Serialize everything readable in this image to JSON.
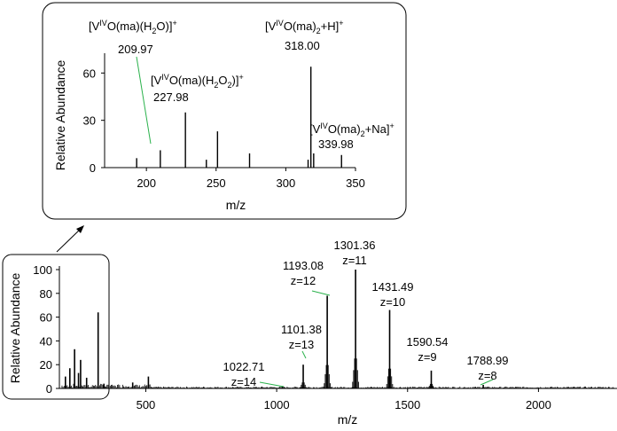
{
  "chart_data": [
    {
      "type": "line",
      "title": "",
      "xlabel": "m/z",
      "ylabel": "Relative Abundance",
      "xlim": [
        170,
        350
      ],
      "ylim": [
        0,
        72
      ],
      "xticks": [
        200,
        250,
        300,
        350
      ],
      "yticks": [
        0,
        30,
        60
      ],
      "grid": false,
      "peaks": [
        {
          "x": 193,
          "y": 6
        },
        {
          "x": 209.97,
          "y": 11
        },
        {
          "x": 227.98,
          "y": 35
        },
        {
          "x": 243,
          "y": 5
        },
        {
          "x": 251,
          "y": 23
        },
        {
          "x": 274,
          "y": 9
        },
        {
          "x": 316,
          "y": 5
        },
        {
          "x": 318.0,
          "y": 64
        },
        {
          "x": 320,
          "y": 9
        },
        {
          "x": 339.98,
          "y": 8
        }
      ],
      "annotations": [
        {
          "formula": "[V^IVO(ma)(H2O)]+",
          "value": "209.97",
          "peak_x": 209.97
        },
        {
          "formula": "[V^IVO(ma)(H2O)2]+",
          "value": "227.98",
          "peak_x": 227.98
        },
        {
          "formula": "[V^IVO(ma)2+H]+",
          "value": "318.00",
          "peak_x": 318.0
        },
        {
          "formula": "[V^IVO(ma)2+Na]+",
          "value": "339.98",
          "peak_x": 339.98
        }
      ]
    },
    {
      "type": "line",
      "title": "",
      "xlabel": "m/z",
      "ylabel": "Relative Abundance",
      "xlim": [
        170,
        2300
      ],
      "ylim": [
        0,
        100
      ],
      "xticks": [
        500,
        1000,
        1500,
        2000
      ],
      "yticks": [
        0,
        20,
        40,
        60,
        80,
        100
      ],
      "grid": false,
      "peaks": [
        {
          "x": 193,
          "y": 10
        },
        {
          "x": 209.97,
          "y": 17
        },
        {
          "x": 227.98,
          "y": 33
        },
        {
          "x": 243,
          "y": 13
        },
        {
          "x": 251,
          "y": 24
        },
        {
          "x": 274,
          "y": 9
        },
        {
          "x": 318.0,
          "y": 64
        },
        {
          "x": 339.98,
          "y": 4
        },
        {
          "x": 450,
          "y": 5
        },
        {
          "x": 510,
          "y": 10
        },
        {
          "x": 1022.71,
          "y": 2
        },
        {
          "x": 1101.38,
          "y": 20
        },
        {
          "x": 1193.08,
          "y": 78
        },
        {
          "x": 1301.36,
          "y": 100
        },
        {
          "x": 1431.49,
          "y": 66
        },
        {
          "x": 1590.54,
          "y": 15
        },
        {
          "x": 1788.99,
          "y": 3
        }
      ],
      "annotations": [
        {
          "value": "1022.71",
          "charge": "z=14",
          "peak_x": 1022.71
        },
        {
          "value": "1101.38",
          "charge": "z=13",
          "peak_x": 1101.38
        },
        {
          "value": "1193.08",
          "charge": "z=12",
          "peak_x": 1193.08
        },
        {
          "value": "1301.36",
          "charge": "z=11",
          "peak_x": 1301.36
        },
        {
          "value": "1431.49",
          "charge": "z=10",
          "peak_x": 1431.49
        },
        {
          "value": "1590.54",
          "charge": "z=9",
          "peak_x": 1590.54
        },
        {
          "value": "1788.99",
          "charge": "z=8",
          "peak_x": 1788.99
        }
      ]
    }
  ]
}
